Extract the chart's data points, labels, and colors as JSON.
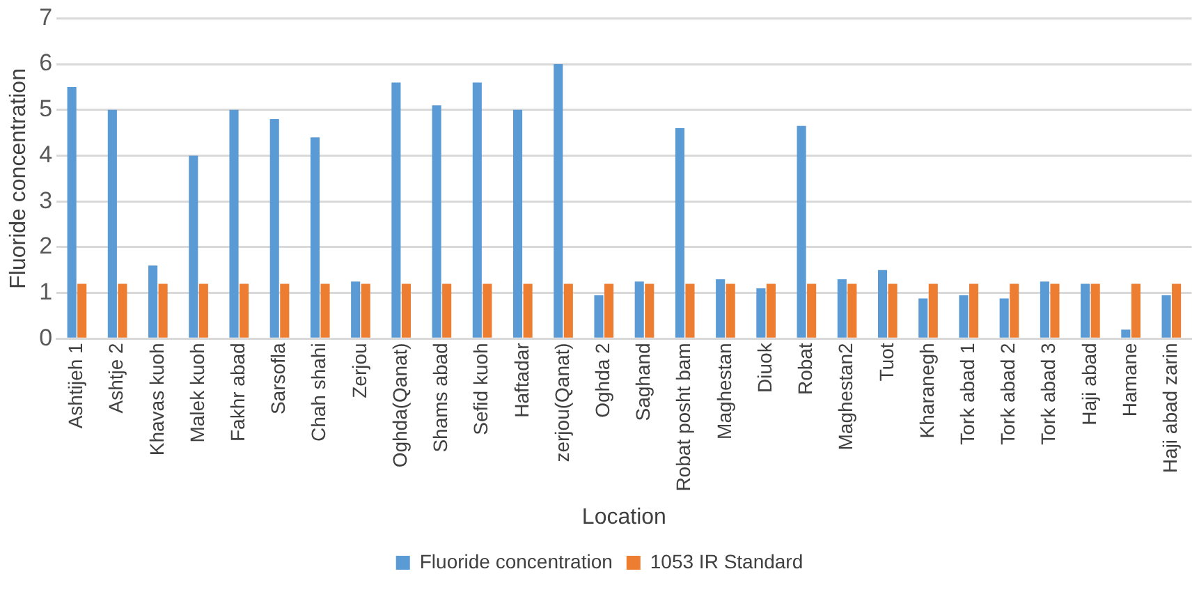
{
  "chart_data": {
    "type": "bar",
    "xlabel": "Location",
    "ylabel": "Fluoride concentration",
    "categories": [
      "Ashtijeh 1",
      "Ashtje 2",
      "Khavas kuoh",
      "Malek kuoh",
      "Fakhr abad",
      "Sarsofla",
      "Chah shahi",
      "Zerjou",
      "Oghda(Qanat)",
      "Shams abad",
      "Sefid kuoh",
      "Haftadar",
      "zerjou(Qanat)",
      "Oghda 2",
      "Saghand",
      "Robat posht bam",
      "Maghestan",
      "Diuok",
      "Robat",
      "Maghestan2",
      "Tuot",
      "Kharanegh",
      "Tork abad 1",
      "Tork abad 2",
      "Tork abad 3",
      "Haji abad",
      "Hamane",
      "Haji abad zarin"
    ],
    "series": [
      {
        "name": "Fluoride concentration",
        "color": "#5b9bd5",
        "values": [
          5.5,
          5,
          1.6,
          4,
          5,
          4.8,
          4.4,
          1.25,
          5.6,
          5.1,
          5.6,
          5,
          6,
          0.95,
          1.25,
          4.6,
          1.3,
          1.1,
          4.65,
          1.3,
          1.5,
          0.88,
          0.95,
          0.88,
          1.25,
          1.2,
          0.2,
          0.95
        ]
      },
      {
        "name": "1053 IR Standard",
        "color": "#ed7d31",
        "values": [
          1.2,
          1.2,
          1.2,
          1.2,
          1.2,
          1.2,
          1.2,
          1.2,
          1.2,
          1.2,
          1.2,
          1.2,
          1.2,
          1.2,
          1.2,
          1.2,
          1.2,
          1.2,
          1.2,
          1.2,
          1.2,
          1.2,
          1.2,
          1.2,
          1.2,
          1.2,
          1.2,
          1.2
        ]
      }
    ],
    "ylim": [
      0,
      7
    ],
    "yticks": [
      0,
      1,
      2,
      3,
      4,
      5,
      6,
      7
    ],
    "grid": "y",
    "legend": "bottom"
  }
}
